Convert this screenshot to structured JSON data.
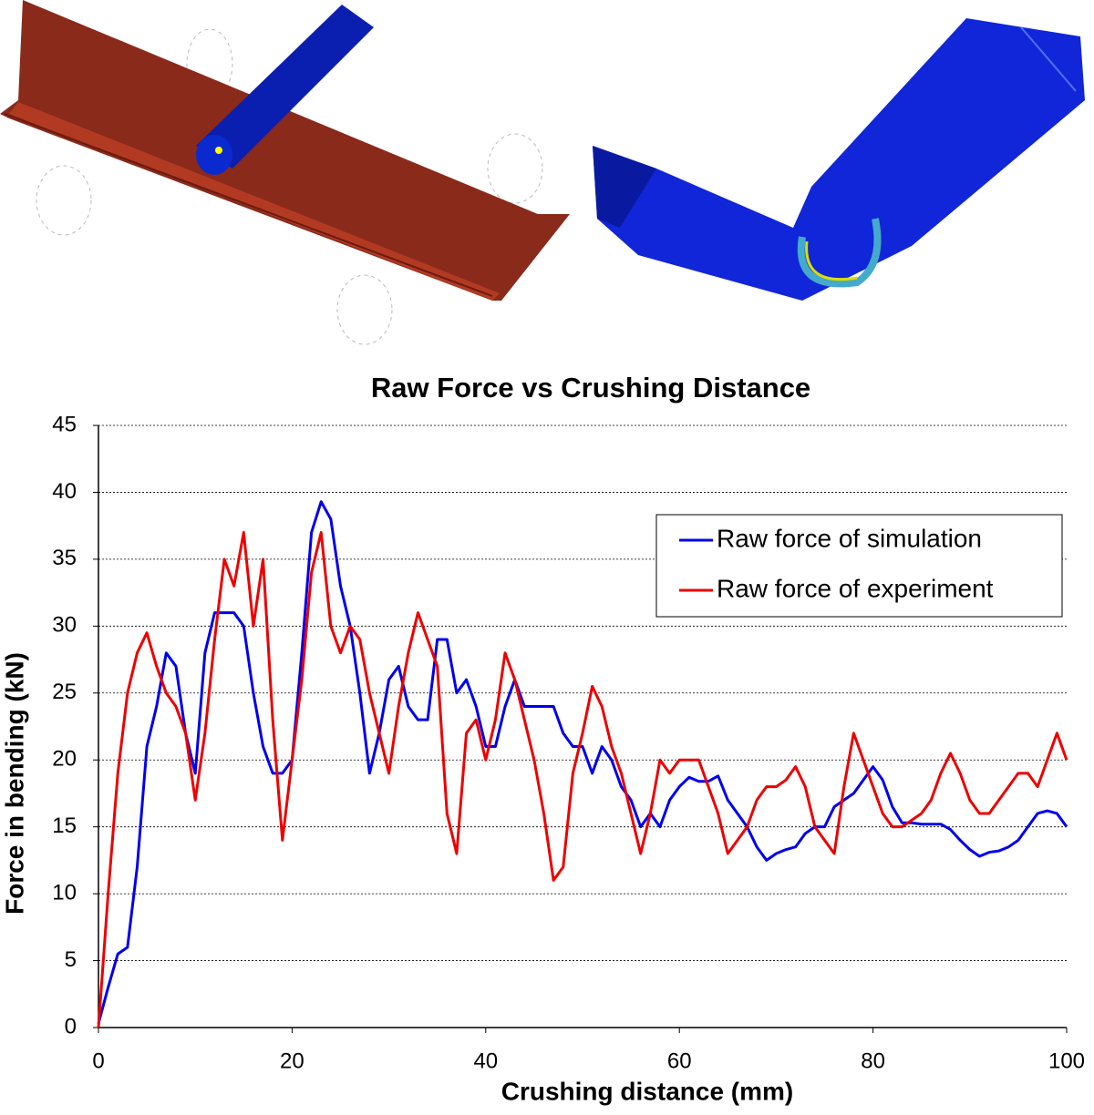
{
  "chart_data": {
    "type": "line",
    "title": "Raw Force vs Crushing Distance",
    "x_label": "Crushing distance (mm)",
    "y_label": "Force in bending (kN)",
    "x": [
      0,
      1,
      2,
      3,
      4,
      5,
      6,
      7,
      8,
      9,
      10,
      11,
      12,
      13,
      14,
      15,
      16,
      17,
      18,
      19,
      20,
      21,
      22,
      23,
      24,
      25,
      26,
      27,
      28,
      29,
      30,
      31,
      32,
      33,
      34,
      35,
      36,
      37,
      38,
      39,
      40,
      41,
      42,
      43,
      44,
      45,
      46,
      47,
      48,
      49,
      50,
      51,
      52,
      53,
      54,
      55,
      56,
      57,
      58,
      59,
      60,
      61,
      62,
      63,
      64,
      65,
      66,
      67,
      68,
      69,
      70,
      71,
      72,
      73,
      74,
      75,
      76,
      77,
      78,
      79,
      80,
      81,
      82,
      83,
      84,
      85,
      86,
      87,
      88,
      89,
      90,
      91,
      92,
      93,
      94,
      95,
      96,
      97,
      98,
      99,
      100
    ],
    "series": [
      {
        "name": "Raw force of simulation",
        "color": "#0000ee",
        "values": [
          0.3,
          3,
          5.5,
          6,
          12,
          21,
          24,
          28,
          27,
          22,
          19,
          28,
          31,
          31,
          31,
          30,
          25,
          21,
          19,
          19,
          20,
          28,
          37,
          39.3,
          38,
          33,
          30,
          25,
          19,
          22,
          26,
          27,
          24,
          23,
          23,
          29,
          29,
          25,
          26,
          24,
          21,
          21,
          24,
          26,
          24,
          24,
          24,
          24,
          22,
          21,
          21,
          19,
          21,
          20,
          18,
          17,
          15,
          16,
          15,
          17,
          18,
          18.7,
          18.4,
          18.4,
          18.8,
          17,
          16,
          15,
          13.5,
          12.5,
          13,
          13.3,
          13.5,
          14.5,
          15,
          15,
          16.5,
          17,
          17.5,
          18.5,
          19.5,
          18.5,
          16.5,
          15.3,
          15.3,
          15.2,
          15.2,
          15.2,
          14.8,
          14,
          13.3,
          12.8,
          13.1,
          13.2,
          13.5,
          14,
          15,
          16,
          16.2,
          16,
          15
        ]
      },
      {
        "name": "Raw force of experiment",
        "color": "#ee0000",
        "values": [
          0,
          10,
          19,
          25,
          28,
          29.5,
          27,
          25,
          24,
          22,
          17,
          22,
          29,
          35,
          33,
          37,
          30,
          35,
          23,
          14,
          20,
          26,
          34,
          37,
          30,
          28,
          30,
          29,
          25,
          22,
          19,
          24,
          28,
          31,
          29,
          27,
          16,
          13,
          22,
          23,
          20,
          23,
          28,
          26,
          23,
          20,
          16,
          11,
          12,
          19,
          22,
          25.5,
          24,
          21,
          19,
          16,
          13,
          16,
          20,
          19,
          20,
          20,
          20,
          18,
          16,
          13,
          14,
          15,
          17,
          18,
          18,
          18.5,
          19.5,
          18,
          15,
          14,
          13,
          18,
          22,
          20,
          18,
          16,
          15,
          15,
          15.5,
          16,
          17,
          19,
          20.5,
          19,
          17,
          16,
          16,
          17,
          18,
          19,
          19,
          18,
          20,
          22,
          20
        ]
      }
    ],
    "xlim": [
      0,
      100
    ],
    "xticks": [
      0,
      20,
      40,
      60,
      80,
      100
    ],
    "ylim": [
      0,
      45
    ],
    "yticks": [
      0,
      5,
      10,
      15,
      20,
      25,
      30,
      35,
      40,
      45
    ],
    "grid": true,
    "legend": "upper-right"
  }
}
